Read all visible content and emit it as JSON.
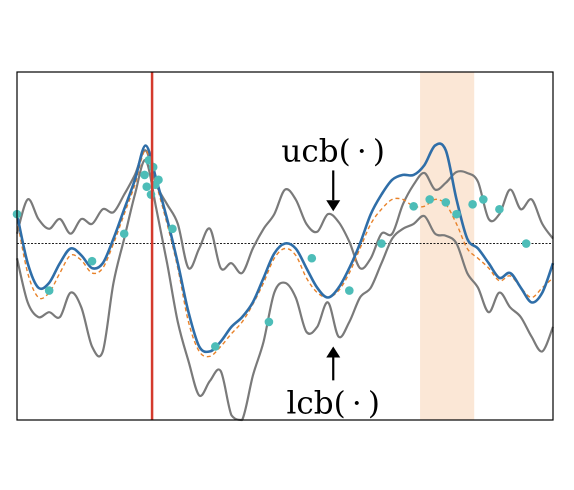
{
  "chart_data": {
    "type": "line",
    "title": "",
    "xlabel": "",
    "ylabel": "",
    "xlim": [
      0,
      1
    ],
    "ylim": [
      -1.8,
      1.75
    ],
    "grid": false,
    "legend": "none",
    "baseline_y": 0,
    "vline_x": 0.252,
    "highlight_band_x": [
      0.752,
      0.853
    ],
    "colors": {
      "mean": "#2f6ea8",
      "bounds": "#7a7a7a",
      "dashed": "#e8822a",
      "points": "#4dbdb8",
      "vline": "#d43a2c",
      "band": "#fbe7d6",
      "baseline": "#000000"
    },
    "annotations": [
      {
        "text": "ucb( · )",
        "x": 0.59,
        "y": 0.95,
        "arrow_tip_y": 0.33
      },
      {
        "text": "lcb( · )",
        "x": 0.59,
        "y": -1.62,
        "arrow_tip_y": -1.05
      }
    ],
    "x": [
      0.0,
      0.02,
      0.04,
      0.06,
      0.08,
      0.1,
      0.12,
      0.14,
      0.16,
      0.18,
      0.2,
      0.22,
      0.24,
      0.26,
      0.28,
      0.3,
      0.32,
      0.34,
      0.36,
      0.38,
      0.4,
      0.42,
      0.44,
      0.46,
      0.48,
      0.5,
      0.52,
      0.54,
      0.56,
      0.58,
      0.6,
      0.62,
      0.64,
      0.66,
      0.68,
      0.7,
      0.72,
      0.74,
      0.76,
      0.78,
      0.8,
      0.82,
      0.84,
      0.86,
      0.88,
      0.9,
      0.92,
      0.94,
      0.96,
      0.98,
      1.0
    ],
    "series": [
      {
        "role": "ucb",
        "values": [
          0.1,
          0.45,
          0.25,
          0.15,
          0.25,
          0.1,
          0.25,
          0.2,
          0.35,
          0.32,
          0.5,
          0.7,
          0.95,
          0.6,
          0.4,
          0.2,
          -0.25,
          -0.05,
          0.15,
          -0.25,
          -0.2,
          -0.3,
          -0.05,
          0.15,
          0.3,
          0.55,
          0.45,
          0.2,
          0.12,
          0.3,
          0.22,
          0.02,
          -0.25,
          -0.15,
          0.1,
          0.1,
          0.4,
          0.6,
          0.72,
          0.55,
          0.62,
          0.73,
          0.72,
          0.63,
          0.25,
          0.3,
          0.55,
          0.35,
          0.45,
          0.2,
          0.05
        ]
      },
      {
        "role": "mean",
        "values": [
          0.3,
          -0.2,
          -0.45,
          -0.4,
          -0.2,
          -0.05,
          -0.12,
          -0.25,
          -0.2,
          0.05,
          0.35,
          0.65,
          1.0,
          0.65,
          0.25,
          -0.2,
          -0.7,
          -1.05,
          -1.1,
          -1.0,
          -0.85,
          -0.75,
          -0.6,
          -0.35,
          -0.1,
          0.0,
          -0.05,
          -0.25,
          -0.45,
          -0.55,
          -0.45,
          -0.25,
          0.0,
          0.3,
          0.5,
          0.65,
          0.7,
          0.7,
          0.8,
          1.0,
          0.95,
          0.45,
          0.05,
          -0.05,
          -0.2,
          -0.35,
          -0.3,
          -0.45,
          -0.6,
          -0.5,
          -0.2
        ]
      },
      {
        "role": "lcb",
        "values": [
          -0.15,
          -0.6,
          -0.75,
          -0.7,
          -0.75,
          -0.5,
          -0.65,
          -1.05,
          -1.1,
          -0.4,
          0.05,
          0.5,
          0.85,
          0.35,
          -0.2,
          -0.8,
          -1.2,
          -1.55,
          -1.4,
          -1.3,
          -1.75,
          -1.85,
          -1.35,
          -1.0,
          -0.5,
          -0.4,
          -0.55,
          -0.9,
          -0.85,
          -0.6,
          -0.95,
          -0.8,
          -0.55,
          -0.45,
          -0.2,
          0.05,
          0.15,
          0.2,
          0.28,
          0.1,
          0.08,
          0.0,
          -0.3,
          -0.45,
          -0.7,
          -0.5,
          -0.65,
          -0.75,
          -0.95,
          -1.1,
          -0.85
        ]
      },
      {
        "role": "dashed",
        "values": [
          0.25,
          -0.3,
          -0.55,
          -0.5,
          -0.3,
          -0.12,
          -0.17,
          -0.3,
          -0.25,
          0.0,
          0.3,
          0.6,
          0.95,
          0.6,
          0.2,
          -0.25,
          -0.8,
          -1.1,
          -1.15,
          -1.05,
          -0.92,
          -0.8,
          -0.62,
          -0.4,
          -0.15,
          -0.05,
          -0.12,
          -0.35,
          -0.5,
          -0.55,
          -0.48,
          -0.3,
          -0.05,
          0.2,
          0.35,
          0.45,
          0.45,
          0.38,
          0.38,
          0.45,
          0.4,
          0.2,
          -0.05,
          -0.15,
          -0.25,
          -0.38,
          -0.33,
          -0.45,
          -0.55,
          -0.45,
          -0.35
        ]
      }
    ],
    "points": {
      "x": [
        0.0,
        0.06,
        0.14,
        0.2,
        0.238,
        0.242,
        0.246,
        0.25,
        0.254,
        0.258,
        0.264,
        0.29,
        0.37,
        0.47,
        0.55,
        0.62,
        0.68,
        0.74,
        0.77,
        0.8,
        0.82,
        0.85,
        0.87,
        0.9,
        0.95
      ],
      "y": [
        0.3,
        -0.48,
        -0.18,
        0.1,
        0.7,
        0.58,
        0.85,
        0.5,
        0.78,
        0.6,
        0.65,
        0.15,
        -1.05,
        -0.8,
        -0.15,
        -0.48,
        0.0,
        0.38,
        0.45,
        0.42,
        0.3,
        0.4,
        0.45,
        0.35,
        0.0
      ]
    }
  }
}
